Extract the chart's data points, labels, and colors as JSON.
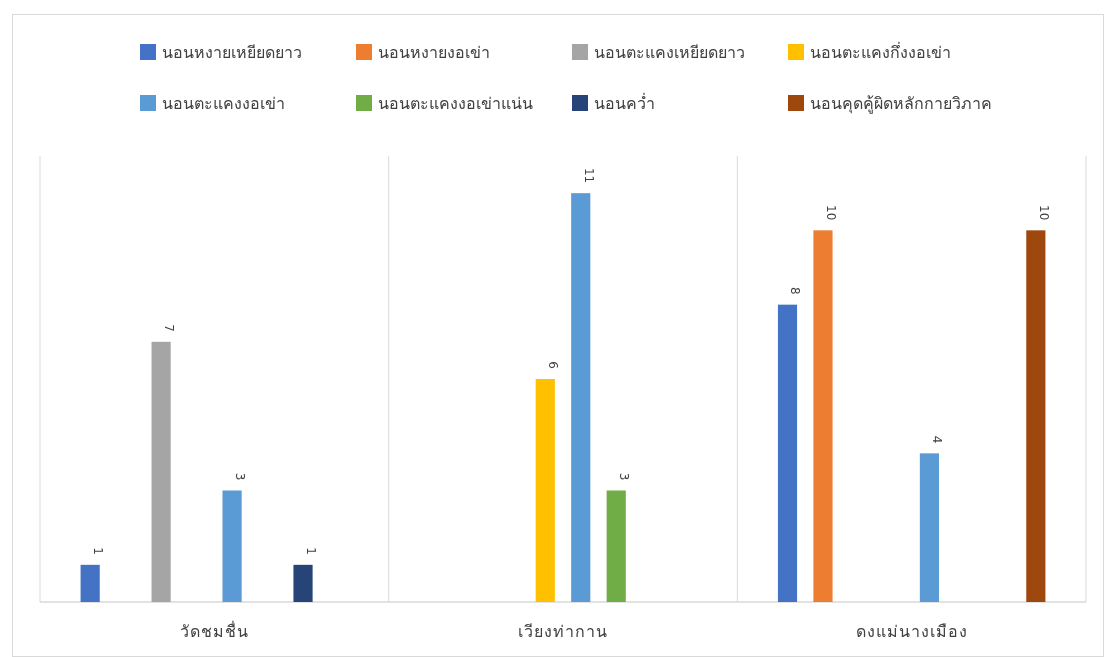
{
  "chart_data": {
    "type": "bar",
    "categories": [
      "วัดชมชื่น",
      "เวียงท่ากาน",
      "ดงแม่นางเมือง"
    ],
    "series": [
      {
        "name": "นอนหงายเหยียดยาว",
        "color": "#4472c4",
        "values": [
          1,
          null,
          8
        ]
      },
      {
        "name": "นอนหงายงอเข่า",
        "color": "#ed7d31",
        "values": [
          null,
          null,
          10
        ]
      },
      {
        "name": "นอนตะแคงเหยียดยาว",
        "color": "#a5a5a5",
        "values": [
          7,
          null,
          null
        ]
      },
      {
        "name": "นอนตะแคงกึ่งงอเข่า",
        "color": "#ffc000",
        "values": [
          null,
          6,
          null
        ]
      },
      {
        "name": "นอนตะแคงงอเข่า",
        "color": "#5b9bd5",
        "values": [
          3,
          11,
          4
        ]
      },
      {
        "name": "นอนตะแคงงอเข่าแน่น",
        "color": "#70ad47",
        "values": [
          null,
          3,
          null
        ]
      },
      {
        "name": "นอนคว่ำ",
        "color": "#264478",
        "values": [
          1,
          null,
          null
        ]
      },
      {
        "name": "นอนคุดคู้ผิดหลักกายวิภาค",
        "color": "#9e480e",
        "values": [
          null,
          null,
          10
        ]
      }
    ],
    "ylim": [
      0,
      12
    ],
    "data_labels": true,
    "grid": "x",
    "legend": "top"
  }
}
